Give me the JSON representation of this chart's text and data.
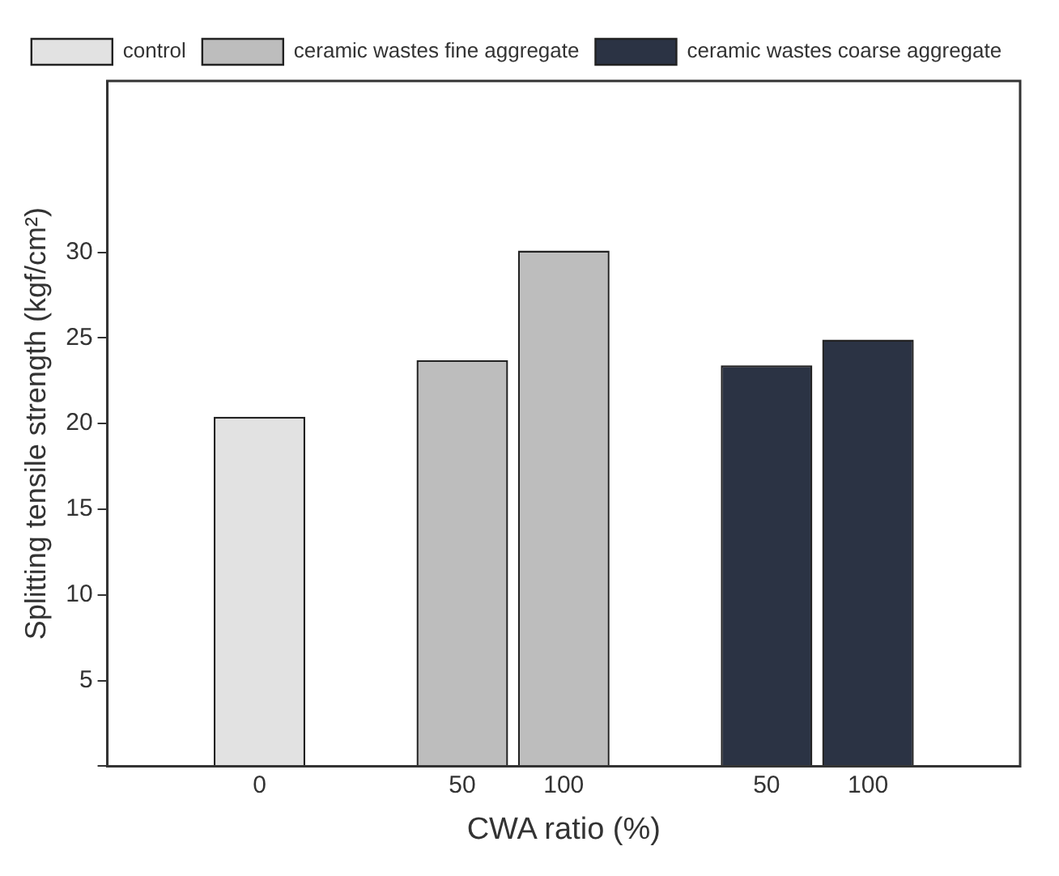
{
  "chart_data": {
    "type": "bar",
    "xlabel": "CWA ratio (%)",
    "ylabel": "Splitting tensile strength (kgf/cm²)",
    "categories": [
      null,
      "0",
      null,
      "50",
      "100",
      null,
      "50",
      "100",
      null
    ],
    "series": [
      {
        "name": "control",
        "color": "#e2e2e2",
        "values": [
          null,
          20.4,
          null,
          null,
          null,
          null,
          null,
          null,
          null
        ]
      },
      {
        "name": "ceramic wastes fine aggregate",
        "color": "#bdbdbd",
        "values": [
          null,
          null,
          null,
          23.7,
          30.1,
          null,
          null,
          null,
          null
        ]
      },
      {
        "name": "ceramic wastes coarse aggregate",
        "color": "#2b3344",
        "values": [
          null,
          null,
          null,
          null,
          null,
          null,
          23.4,
          24.9,
          null
        ]
      }
    ],
    "ylim": [
      0,
      40
    ],
    "yticks": [
      {
        "value": 0,
        "label": null
      },
      5,
      10,
      15,
      20,
      25,
      30
    ],
    "grid": false,
    "legend": "top"
  }
}
